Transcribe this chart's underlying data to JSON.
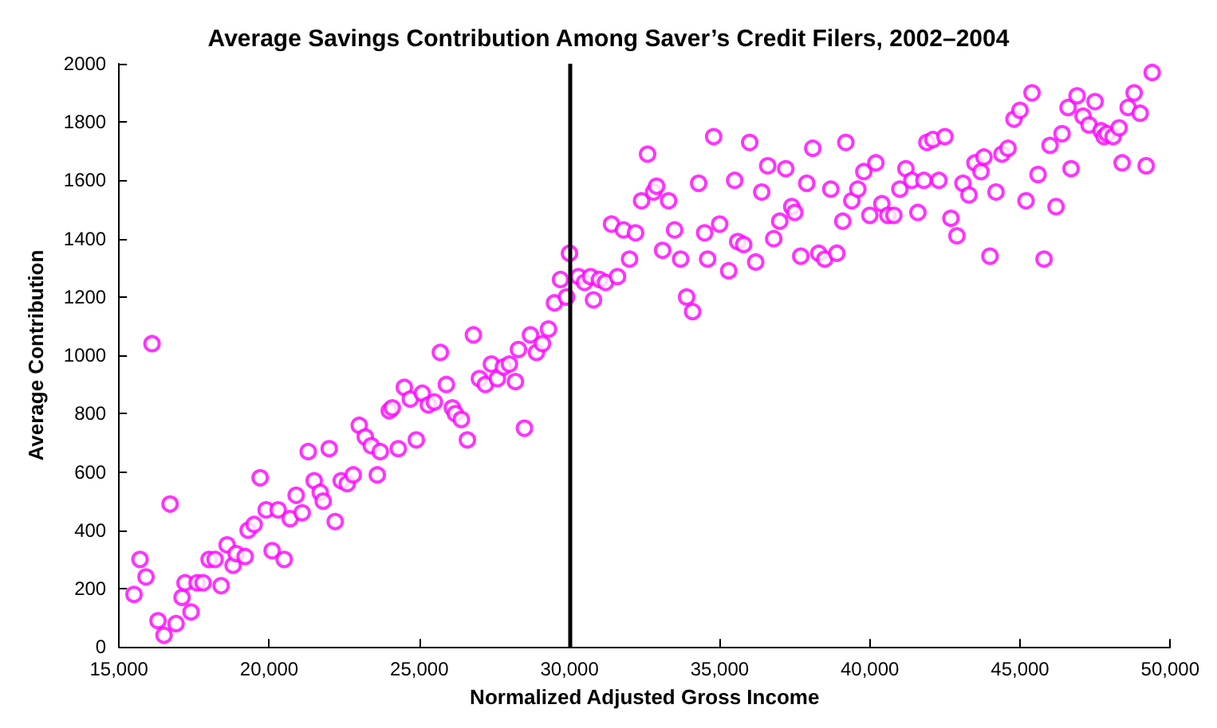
{
  "chart_data": {
    "type": "scatter",
    "title": "Average Savings Contribution Among Saver’s Credit Filers, 2002–2004",
    "xlabel": "Normalized Adjusted Gross Income",
    "ylabel": "Average Contribution",
    "xlim": [
      15000,
      50000
    ],
    "xticks": [
      {
        "value": 15000,
        "label": "15,000"
      },
      {
        "value": 20000,
        "label": "20,000"
      },
      {
        "value": 25000,
        "label": "25,000"
      },
      {
        "value": 30000,
        "label": "30,000"
      },
      {
        "value": 35000,
        "label": "35,000"
      },
      {
        "value": 40000,
        "label": "40,000"
      },
      {
        "value": 45000,
        "label": "45,000"
      },
      {
        "value": 50000,
        "label": "50,000"
      }
    ],
    "ylim": [
      0,
      2000
    ],
    "yticks": [
      0,
      200,
      400,
      600,
      800,
      1000,
      1200,
      1400,
      1600,
      1800,
      2000
    ],
    "grid": false,
    "marker": "circle",
    "ref_lines": [
      {
        "axis": "x",
        "value": 30000,
        "color": "#000000",
        "line_style": "solid"
      }
    ],
    "series": [
      {
        "color": "#ff00ff",
        "x": [
          16100,
          15700,
          15900,
          15500,
          16700,
          16300,
          16500,
          16900,
          17100,
          17400,
          17200,
          17600,
          17800,
          18400,
          18000,
          18200,
          18600,
          18800,
          18900,
          19200,
          19300,
          19500,
          19700,
          19900,
          20300,
          20100,
          20500,
          20700,
          20900,
          21100,
          21300,
          21500,
          21700,
          21800,
          22000,
          22200,
          22400,
          22600,
          22800,
          23000,
          23200,
          23400,
          23600,
          23700,
          24000,
          24100,
          24300,
          24500,
          24700,
          24900,
          25100,
          25300,
          25500,
          25700,
          25900,
          26100,
          26200,
          26400,
          26600,
          26800,
          27000,
          27200,
          27400,
          27600,
          27800,
          28000,
          28200,
          28300,
          28500,
          28700,
          28900,
          29100,
          29300,
          29500,
          29700,
          29900,
          30000,
          30300,
          30500,
          30700,
          30800,
          31000,
          31200,
          31600,
          32000,
          31400,
          31800,
          32200,
          32400,
          32800,
          32900,
          32600,
          33300,
          33100,
          33500,
          33700,
          33900,
          34100,
          34300,
          34500,
          34600,
          34800,
          35000,
          35300,
          35500,
          35600,
          35800,
          36000,
          36200,
          36400,
          36600,
          36800,
          37000,
          37200,
          37400,
          37500,
          37700,
          37900,
          38100,
          38300,
          38500,
          38700,
          38900,
          39100,
          39200,
          39400,
          39600,
          39800,
          40000,
          40200,
          40400,
          40600,
          40800,
          41000,
          41200,
          41400,
          41600,
          41800,
          41900,
          42100,
          42300,
          42500,
          42700,
          42900,
          43100,
          43300,
          43500,
          43700,
          43800,
          44000,
          44200,
          44400,
          44600,
          44800,
          45000,
          45200,
          45400,
          45600,
          45800,
          46000,
          46200,
          46400,
          46600,
          46700,
          46900,
          47100,
          47300,
          47500,
          47700,
          47800,
          47900,
          48100,
          48300,
          48400,
          48600,
          48800,
          49000,
          49200,
          49400
        ],
        "values": [
          1040,
          300,
          240,
          180,
          490,
          90,
          40,
          80,
          170,
          120,
          220,
          220,
          220,
          210,
          300,
          300,
          350,
          280,
          320,
          310,
          400,
          420,
          580,
          470,
          470,
          330,
          300,
          440,
          520,
          460,
          670,
          570,
          530,
          500,
          680,
          430,
          570,
          560,
          590,
          760,
          720,
          690,
          590,
          670,
          810,
          820,
          680,
          890,
          850,
          710,
          870,
          830,
          840,
          1010,
          900,
          820,
          800,
          780,
          710,
          1070,
          920,
          900,
          970,
          920,
          960,
          970,
          910,
          1020,
          750,
          1070,
          1010,
          1040,
          1090,
          1180,
          1260,
          1200,
          1350,
          1270,
          1250,
          1270,
          1190,
          1260,
          1250,
          1270,
          1330,
          1450,
          1430,
          1420,
          1530,
          1560,
          1580,
          1690,
          1530,
          1360,
          1430,
          1330,
          1200,
          1150,
          1590,
          1420,
          1330,
          1750,
          1450,
          1290,
          1600,
          1390,
          1380,
          1730,
          1320,
          1560,
          1650,
          1400,
          1460,
          1640,
          1510,
          1490,
          1340,
          1590,
          1710,
          1350,
          1330,
          1570,
          1350,
          1460,
          1730,
          1530,
          1570,
          1630,
          1480,
          1660,
          1520,
          1480,
          1480,
          1570,
          1640,
          1600,
          1490,
          1600,
          1730,
          1740,
          1600,
          1750,
          1470,
          1410,
          1590,
          1550,
          1660,
          1630,
          1680,
          1340,
          1560,
          1690,
          1710,
          1810,
          1840,
          1530,
          1900,
          1620,
          1330,
          1720,
          1510,
          1760,
          1850,
          1640,
          1890,
          1820,
          1790,
          1870,
          1770,
          1750,
          1760,
          1750,
          1780,
          1660,
          1850,
          1900,
          1830,
          1650,
          1970
        ]
      }
    ]
  }
}
